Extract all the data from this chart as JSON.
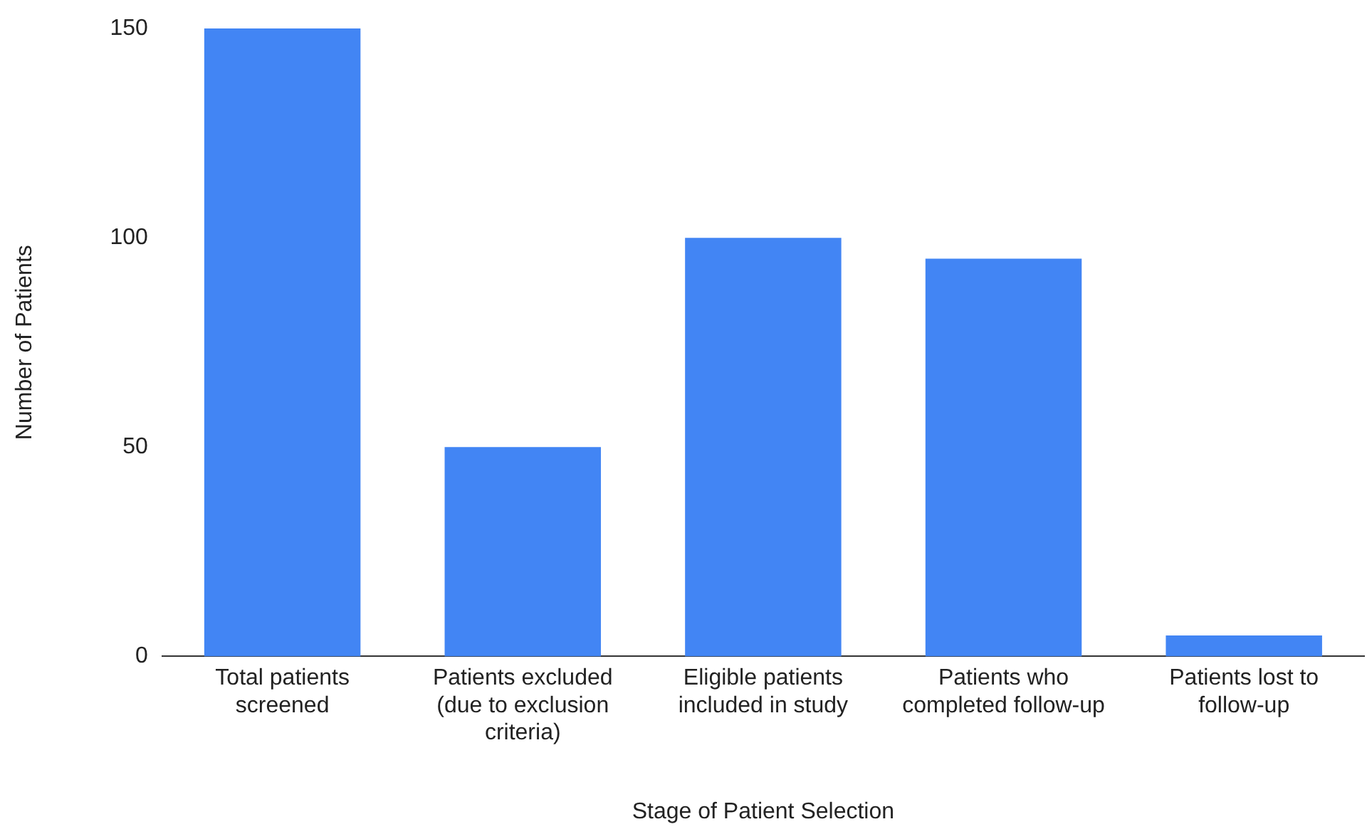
{
  "chart_data": {
    "type": "bar",
    "xlabel": "Stage of Patient Selection",
    "ylabel": "Number of Patients",
    "categories": [
      "Total patients screened",
      "Patients excluded (due to exclusion criteria)",
      "Eligible patients included in study",
      "Patients who completed follow-up",
      "Patients lost to follow-up"
    ],
    "values": [
      150,
      50,
      100,
      95,
      5
    ],
    "color": "#4285f4",
    "ylim": [
      0,
      150
    ],
    "yticks": [
      0,
      50,
      100,
      150
    ],
    "grid": false,
    "legend": false
  }
}
